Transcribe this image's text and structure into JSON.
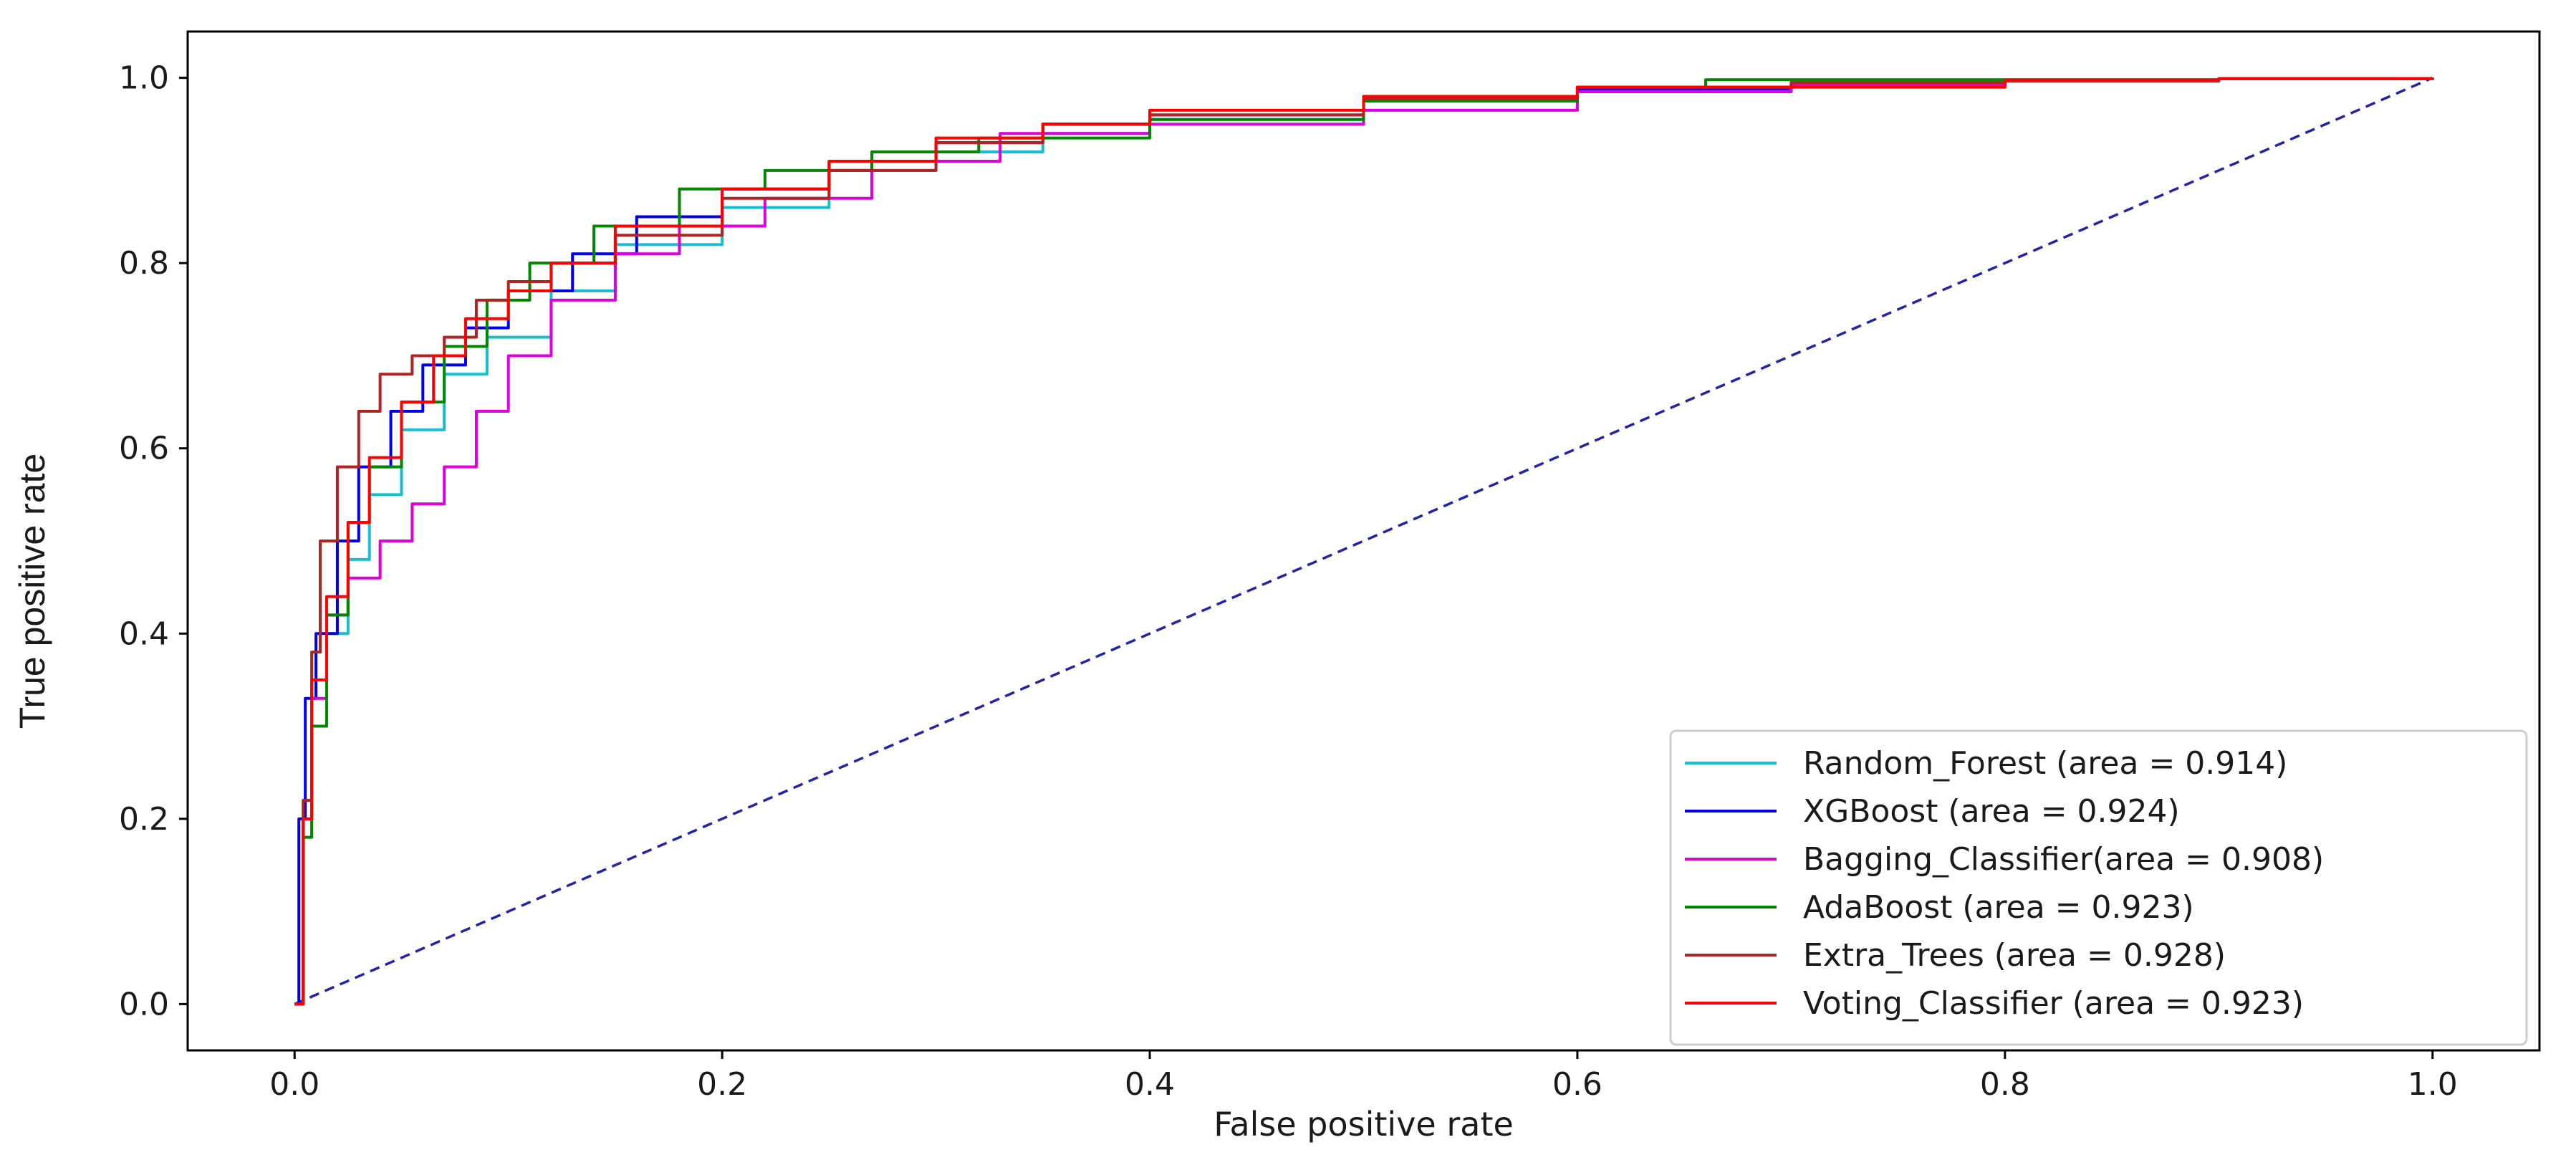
{
  "chart_data": {
    "type": "line",
    "title": "",
    "xlabel": "False positive rate",
    "ylabel": "True positive rate",
    "xlim": [
      -0.05,
      1.05
    ],
    "ylim": [
      -0.05,
      1.05
    ],
    "xticks": [
      0.0,
      0.2,
      0.4,
      0.6,
      0.8,
      1.0
    ],
    "yticks": [
      0.0,
      0.2,
      0.4,
      0.6,
      0.8,
      1.0
    ],
    "xtick_labels": [
      "0.0",
      "0.2",
      "0.4",
      "0.6",
      "0.8",
      "1.0"
    ],
    "ytick_labels": [
      "0.0",
      "0.2",
      "0.4",
      "0.6",
      "0.8",
      "1.0"
    ],
    "legend_position": "lower-right",
    "grid": false,
    "baseline": {
      "x": [
        0,
        1
      ],
      "y": [
        0,
        1
      ],
      "color": "#2222aa",
      "style": "dashed"
    },
    "series": [
      {
        "name": "Random_Forest (area = 0.914)",
        "color": "#17becf",
        "x": [
          0,
          0.004,
          0.008,
          0.015,
          0.025,
          0.035,
          0.05,
          0.07,
          0.09,
          0.12,
          0.15,
          0.2,
          0.25,
          0.3,
          0.35,
          0.4,
          0.5,
          0.6,
          0.7,
          0.8,
          0.9,
          1.0
        ],
        "y": [
          0,
          0.18,
          0.3,
          0.4,
          0.48,
          0.55,
          0.62,
          0.68,
          0.72,
          0.77,
          0.82,
          0.86,
          0.9,
          0.92,
          0.94,
          0.955,
          0.975,
          0.985,
          0.992,
          0.996,
          0.999,
          1.0
        ]
      },
      {
        "name": "XGBoost (area = 0.924)",
        "color": "#0000ee",
        "x": [
          0,
          0.002,
          0.005,
          0.01,
          0.02,
          0.03,
          0.045,
          0.06,
          0.08,
          0.1,
          0.13,
          0.16,
          0.2,
          0.25,
          0.3,
          0.35,
          0.4,
          0.5,
          0.6,
          0.7,
          0.8,
          0.9,
          1.0
        ],
        "y": [
          0,
          0.2,
          0.33,
          0.4,
          0.5,
          0.58,
          0.64,
          0.69,
          0.73,
          0.77,
          0.81,
          0.85,
          0.88,
          0.91,
          0.93,
          0.95,
          0.96,
          0.975,
          0.987,
          0.993,
          0.997,
          0.999,
          1.0
        ]
      },
      {
        "name": "Bagging_Classifier(area = 0.908)",
        "color": "#dd00dd",
        "x": [
          0,
          0.004,
          0.008,
          0.015,
          0.025,
          0.04,
          0.055,
          0.07,
          0.085,
          0.1,
          0.12,
          0.15,
          0.18,
          0.22,
          0.27,
          0.33,
          0.4,
          0.5,
          0.6,
          0.7,
          0.8,
          0.9,
          1.0
        ],
        "y": [
          0,
          0.2,
          0.33,
          0.42,
          0.46,
          0.5,
          0.54,
          0.58,
          0.64,
          0.7,
          0.76,
          0.81,
          0.84,
          0.87,
          0.91,
          0.94,
          0.95,
          0.965,
          0.985,
          0.992,
          0.997,
          0.999,
          1.0
        ]
      },
      {
        "name": "AdaBoost (area = 0.923)",
        "color": "#008800",
        "x": [
          0,
          0.004,
          0.008,
          0.015,
          0.025,
          0.035,
          0.05,
          0.07,
          0.09,
          0.11,
          0.14,
          0.18,
          0.22,
          0.27,
          0.32,
          0.4,
          0.5,
          0.6,
          0.66,
          0.8,
          0.9,
          1.0
        ],
        "y": [
          0,
          0.18,
          0.3,
          0.42,
          0.52,
          0.58,
          0.65,
          0.71,
          0.76,
          0.8,
          0.84,
          0.88,
          0.9,
          0.92,
          0.935,
          0.955,
          0.975,
          0.99,
          0.998,
          0.998,
          0.999,
          1.0
        ]
      },
      {
        "name": "Extra_Trees (area = 0.928)",
        "color": "#b22222",
        "x": [
          0,
          0.004,
          0.008,
          0.012,
          0.02,
          0.03,
          0.04,
          0.055,
          0.07,
          0.085,
          0.1,
          0.12,
          0.15,
          0.2,
          0.25,
          0.3,
          0.35,
          0.4,
          0.5,
          0.6,
          0.7,
          0.8,
          0.9,
          1.0
        ],
        "y": [
          0,
          0.22,
          0.38,
          0.5,
          0.58,
          0.64,
          0.68,
          0.7,
          0.72,
          0.76,
          0.78,
          0.8,
          0.83,
          0.87,
          0.9,
          0.93,
          0.95,
          0.96,
          0.978,
          0.99,
          0.995,
          0.998,
          0.999,
          1.0
        ]
      },
      {
        "name": "Voting_Classifier (area = 0.923)",
        "color": "#ff0000",
        "x": [
          0,
          0.004,
          0.008,
          0.015,
          0.025,
          0.035,
          0.05,
          0.065,
          0.08,
          0.1,
          0.12,
          0.15,
          0.2,
          0.25,
          0.3,
          0.35,
          0.4,
          0.5,
          0.6,
          0.7,
          0.8,
          0.9,
          1.0
        ],
        "y": [
          0,
          0.2,
          0.35,
          0.44,
          0.52,
          0.59,
          0.65,
          0.7,
          0.74,
          0.77,
          0.8,
          0.84,
          0.88,
          0.91,
          0.935,
          0.95,
          0.965,
          0.98,
          0.99,
          0.99,
          0.997,
          0.999,
          1.0
        ]
      }
    ]
  }
}
